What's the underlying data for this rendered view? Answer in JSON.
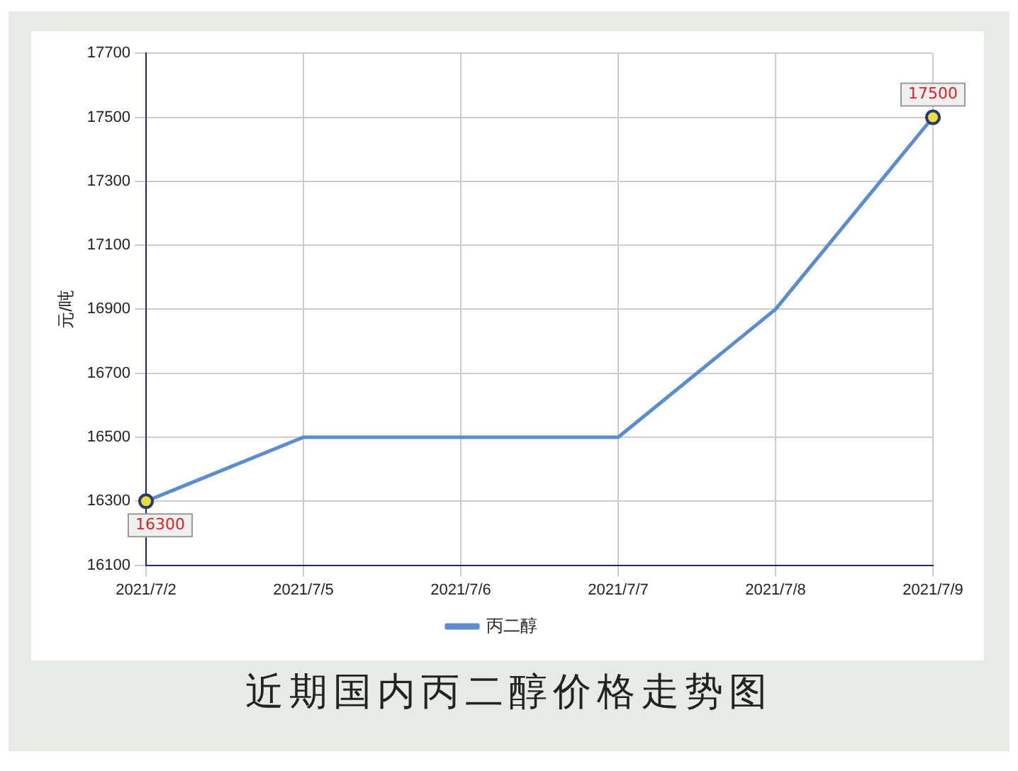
{
  "chart_data": {
    "type": "line",
    "title": "近期国内丙二醇价格走势图",
    "ylabel": "元/吨",
    "categories": [
      "2021/7/2",
      "2021/7/5",
      "2021/7/6",
      "2021/7/7",
      "2021/7/8",
      "2021/7/9"
    ],
    "series": [
      {
        "name": "丙二醇",
        "color": "#5b8bd0",
        "values": [
          16300,
          16500,
          16500,
          16500,
          16900,
          17500
        ]
      }
    ],
    "ylim": [
      16100,
      17700
    ],
    "yticks": [
      16100,
      16300,
      16500,
      16700,
      16900,
      17100,
      17300,
      17500,
      17700
    ],
    "grid": true,
    "legend": "bottom",
    "marker": "none",
    "line_style": "solid",
    "annotations": [
      {
        "text": "16300",
        "x": "2021/7/2",
        "y": 16300
      },
      {
        "text": "17500",
        "x": "2021/7/9",
        "y": 17500
      }
    ]
  }
}
